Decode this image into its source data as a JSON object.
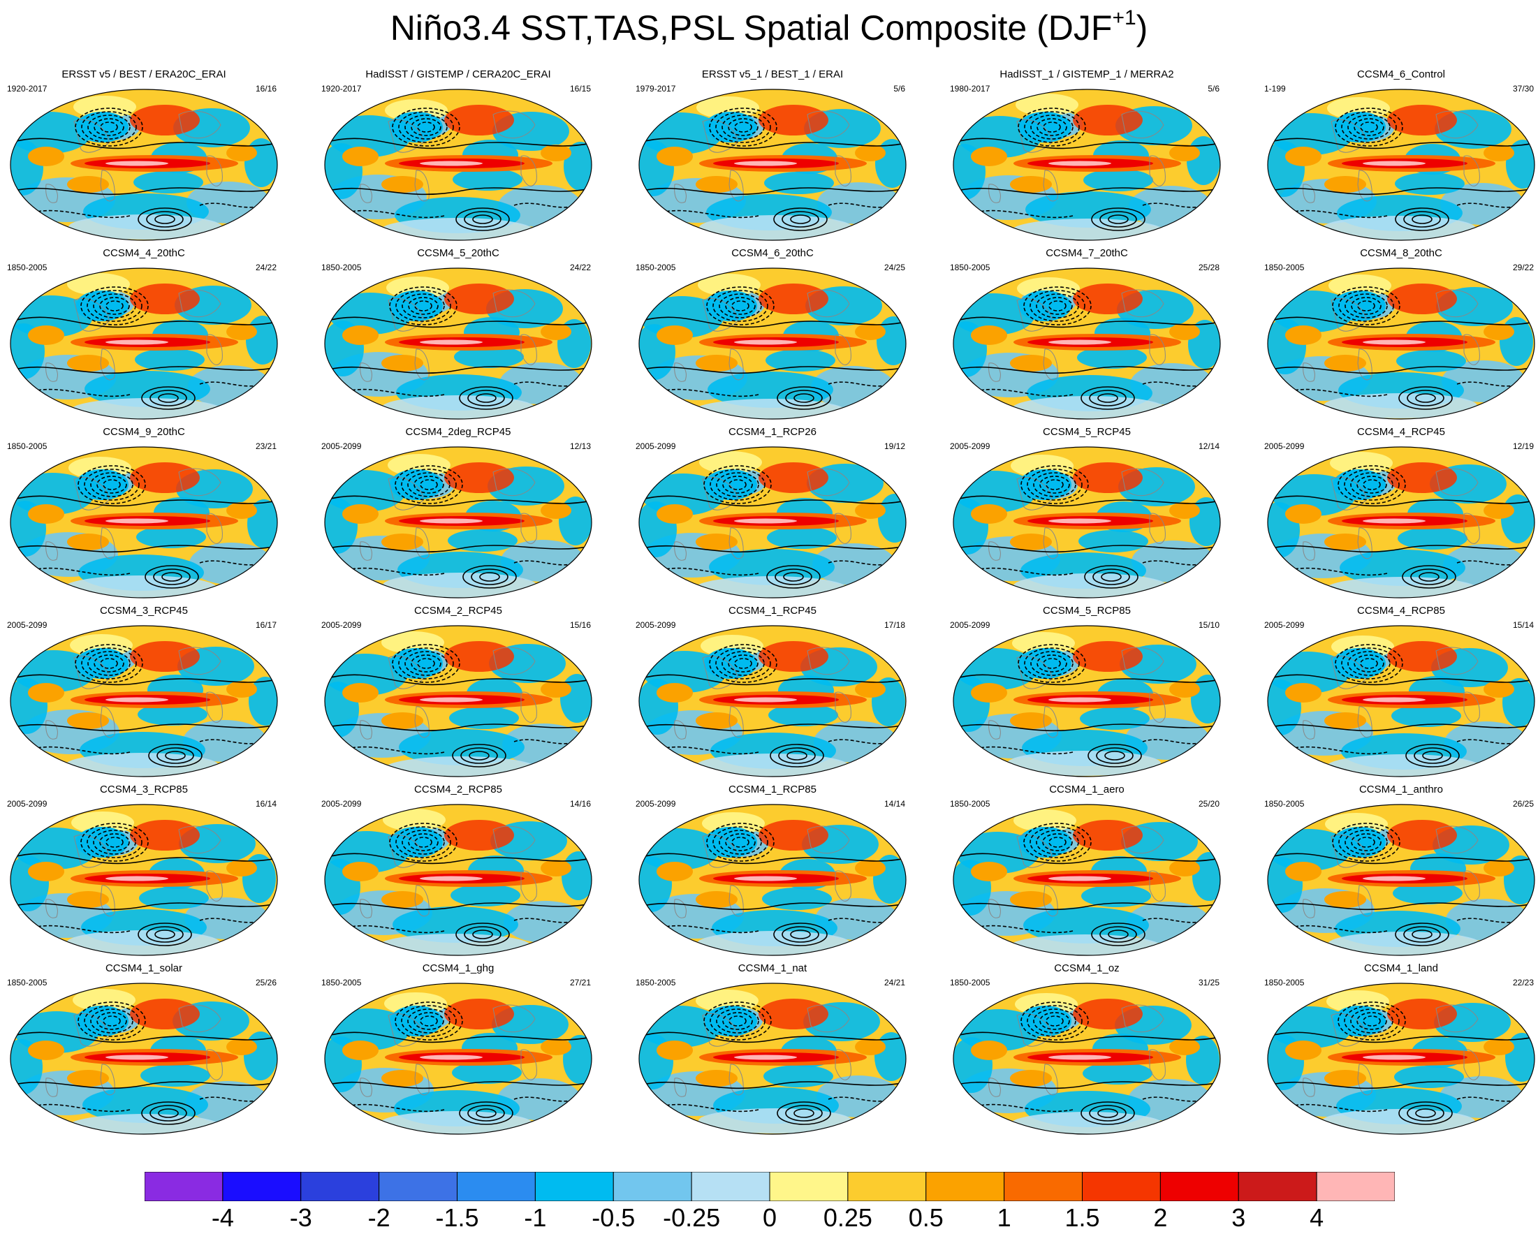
{
  "title": "Niño3.4 SST,TAS,PSL Spatial Composite (DJF",
  "title_superscript": "+1",
  "chart_data": {
    "type": "heatmap",
    "rows": 6,
    "columns": 5,
    "panels": [
      {
        "name": "ERSST v5 / BEST / ERA20C_ERAI",
        "years": "1920-2017",
        "count": "16/16"
      },
      {
        "name": "HadISST / GISTEMP / CERA20C_ERAI",
        "years": "1920-2017",
        "count": "16/15"
      },
      {
        "name": "ERSST v5_1 / BEST_1 / ERAI",
        "years": "1979-2017",
        "count": "5/6"
      },
      {
        "name": "HadISST_1 / GISTEMP_1 / MERRA2",
        "years": "1980-2017",
        "count": "5/6"
      },
      {
        "name": "CCSM4_6_Control",
        "years": "1-199",
        "count": "37/30"
      },
      {
        "name": "CCSM4_4_20thC",
        "years": "1850-2005",
        "count": "24/22"
      },
      {
        "name": "CCSM4_5_20thC",
        "years": "1850-2005",
        "count": "24/22"
      },
      {
        "name": "CCSM4_6_20thC",
        "years": "1850-2005",
        "count": "24/25"
      },
      {
        "name": "CCSM4_7_20thC",
        "years": "1850-2005",
        "count": "25/28"
      },
      {
        "name": "CCSM4_8_20thC",
        "years": "1850-2005",
        "count": "29/22"
      },
      {
        "name": "CCSM4_9_20thC",
        "years": "1850-2005",
        "count": "23/21"
      },
      {
        "name": "CCSM4_2deg_RCP45",
        "years": "2005-2099",
        "count": "12/13"
      },
      {
        "name": "CCSM4_1_RCP26",
        "years": "2005-2099",
        "count": "19/12"
      },
      {
        "name": "CCSM4_5_RCP45",
        "years": "2005-2099",
        "count": "12/14"
      },
      {
        "name": "CCSM4_4_RCP45",
        "years": "2005-2099",
        "count": "12/19"
      },
      {
        "name": "CCSM4_3_RCP45",
        "years": "2005-2099",
        "count": "16/17"
      },
      {
        "name": "CCSM4_2_RCP45",
        "years": "2005-2099",
        "count": "15/16"
      },
      {
        "name": "CCSM4_1_RCP45",
        "years": "2005-2099",
        "count": "17/18"
      },
      {
        "name": "CCSM4_5_RCP85",
        "years": "2005-2099",
        "count": "15/10"
      },
      {
        "name": "CCSM4_4_RCP85",
        "years": "2005-2099",
        "count": "15/14"
      },
      {
        "name": "CCSM4_3_RCP85",
        "years": "2005-2099",
        "count": "16/14"
      },
      {
        "name": "CCSM4_2_RCP85",
        "years": "2005-2099",
        "count": "14/16"
      },
      {
        "name": "CCSM4_1_RCP85",
        "years": "2005-2099",
        "count": "14/14"
      },
      {
        "name": "CCSM4_1_aero",
        "years": "1850-2005",
        "count": "25/20"
      },
      {
        "name": "CCSM4_1_anthro",
        "years": "1850-2005",
        "count": "26/25"
      },
      {
        "name": "CCSM4_1_solar",
        "years": "1850-2005",
        "count": "25/26"
      },
      {
        "name": "CCSM4_1_ghg",
        "years": "1850-2005",
        "count": "27/21"
      },
      {
        "name": "CCSM4_1_nat",
        "years": "1850-2005",
        "count": "24/21"
      },
      {
        "name": "CCSM4_1_oz",
        "years": "1850-2005",
        "count": "31/25"
      },
      {
        "name": "CCSM4_1_land",
        "years": "1850-2005",
        "count": "22/23"
      }
    ],
    "colorbar": {
      "levels": [
        "-4",
        "-3",
        "-2",
        "-1.5",
        "-1",
        "-0.5",
        "-0.25",
        "0",
        "0.25",
        "0.5",
        "1",
        "1.5",
        "2",
        "3",
        "4"
      ],
      "colors": [
        "#8a2be2",
        "#1a0dff",
        "#2b40dd",
        "#3d72e6",
        "#2b8cf0",
        "#00bbf0",
        "#72c6ee",
        "#b6e0f4",
        "#fff68a",
        "#fccc2e",
        "#fba200",
        "#f96a00",
        "#f53600",
        "#ee0000",
        "#cc1a1a",
        "#ffb6b6"
      ]
    }
  }
}
